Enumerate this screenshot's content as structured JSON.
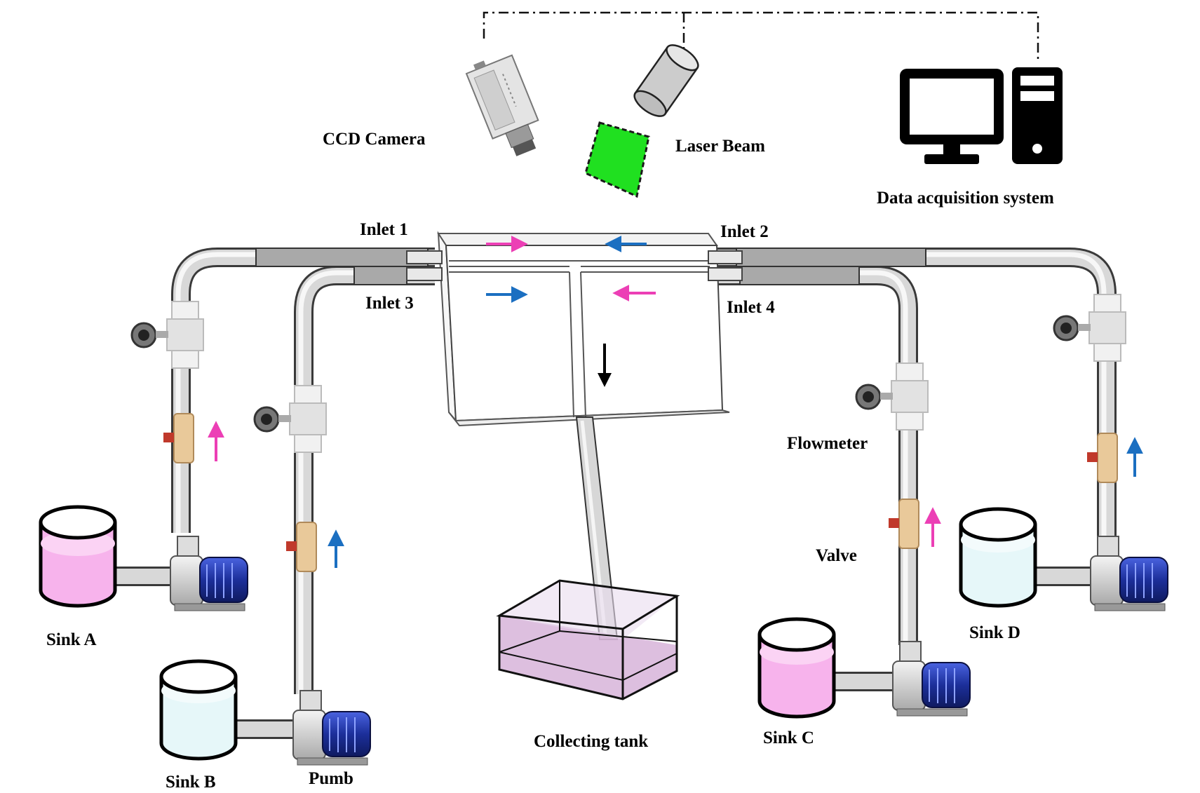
{
  "labels": {
    "ccd_camera": "CCD Camera",
    "laser_beam": "Laser Beam",
    "data_acquisition": "Data acquisition system",
    "inlet1": "Inlet 1",
    "inlet2": "Inlet 2",
    "inlet3": "Inlet 3",
    "inlet4": "Inlet 4",
    "flowmeter": "Flowmeter",
    "valve": "Valve",
    "pump": "Pumb",
    "collecting_tank": "Collecting tank",
    "sink_a": "Sink A",
    "sink_b": "Sink B",
    "sink_c": "Sink C",
    "sink_d": "Sink D"
  },
  "colors": {
    "pink_fluid": "#f7b3ec",
    "clear_fluid": "#e6f7f9",
    "pink_arrow": "#ec3fb5",
    "blue_arrow": "#1b6fc1",
    "laser": "#20e020",
    "pump_blue": "#2a3fb0",
    "valve": "#e9c99a",
    "tank_fluid": "#d9b8dc"
  }
}
